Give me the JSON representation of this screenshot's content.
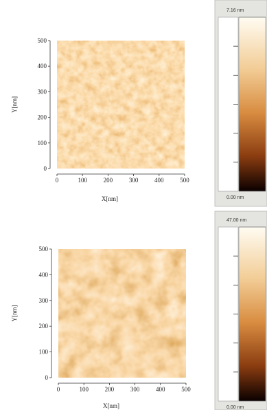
{
  "chart_data": [
    {
      "type": "image",
      "xlabel": "X[nm]",
      "ylabel": "Y[nm]",
      "xlim": [
        0,
        500
      ],
      "ylim": [
        0,
        500
      ],
      "xticks": [
        0,
        100,
        200,
        300,
        400,
        500
      ],
      "yticks": [
        0,
        100,
        200,
        300,
        400,
        500
      ],
      "colorbar_ticks": [
        {
          "value": 7.16,
          "label": "7.16 nm"
        },
        {
          "value": 0,
          "label": "0.00 nm"
        }
      ]
    },
    {
      "type": "image",
      "xlabel": "X[nm]",
      "ylabel": "Y[nm]",
      "xlim": [
        0,
        500
      ],
      "ylim": [
        0,
        500
      ],
      "xticks": [
        0,
        100,
        200,
        300,
        400,
        500
      ],
      "yticks": [
        0,
        100,
        200,
        300,
        400,
        500
      ],
      "colorbar_ticks": [
        {
          "value": 47.0,
          "label": "47.00 nm"
        },
        {
          "value": 0,
          "label": "0.00 nm"
        }
      ]
    }
  ]
}
